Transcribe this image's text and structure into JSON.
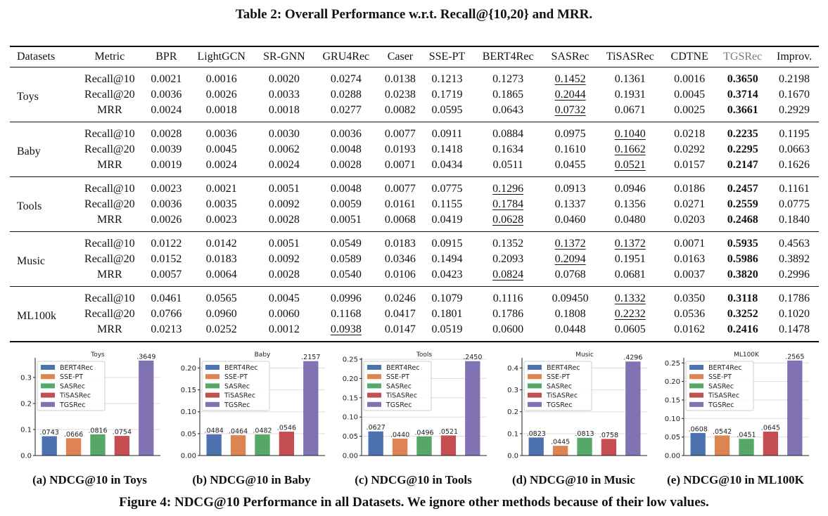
{
  "table_caption": "Table 2: Overall Performance w.r.t. Recall@{10,20} and MRR.",
  "columns": [
    "Datasets",
    "Metric",
    "BPR",
    "LightGCN",
    "SR-GNN",
    "GRU4Rec",
    "Caser",
    "SSE-PT",
    "BERT4Rec",
    "SASRec",
    "TiSASRec",
    "CDTNE",
    "TGSRec",
    "Improv."
  ],
  "groups": [
    {
      "dataset": "Toys",
      "rows": [
        {
          "metric": "Recall@10",
          "values": [
            "0.0021",
            "0.0016",
            "0.0020",
            "0.0274",
            "0.0138",
            "0.1213",
            "0.1273",
            "0.1452",
            "0.1361",
            "0.0016",
            "0.3650",
            "0.2198"
          ],
          "underline": 7
        },
        {
          "metric": "Recall@20",
          "values": [
            "0.0036",
            "0.0026",
            "0.0033",
            "0.0288",
            "0.0238",
            "0.1719",
            "0.1865",
            "0.2044",
            "0.1931",
            "0.0045",
            "0.3714",
            "0.1670"
          ],
          "underline": 7
        },
        {
          "metric": "MRR",
          "values": [
            "0.0024",
            "0.0018",
            "0.0018",
            "0.0277",
            "0.0082",
            "0.0595",
            "0.0643",
            "0.0732",
            "0.0671",
            "0.0025",
            "0.3661",
            "0.2929"
          ],
          "underline": 7
        }
      ]
    },
    {
      "dataset": "Baby",
      "rows": [
        {
          "metric": "Recall@10",
          "values": [
            "0.0028",
            "0.0036",
            "0.0030",
            "0.0036",
            "0.0077",
            "0.0911",
            "0.0884",
            "0.0975",
            "0.1040",
            "0.0218",
            "0.2235",
            "0.1195"
          ],
          "underline": 8
        },
        {
          "metric": "Recall@20",
          "values": [
            "0.0039",
            "0.0045",
            "0.0062",
            "0.0048",
            "0.0193",
            "0.1418",
            "0.1634",
            "0.1610",
            "0.1662",
            "0.0292",
            "0.2295",
            "0.0663"
          ],
          "underline": 8
        },
        {
          "metric": "MRR",
          "values": [
            "0.0019",
            "0.0024",
            "0.0024",
            "0.0028",
            "0.0071",
            "0.0434",
            "0.0511",
            "0.0455",
            "0.0521",
            "0.0157",
            "0.2147",
            "0.1626"
          ],
          "underline": 8
        }
      ]
    },
    {
      "dataset": "Tools",
      "rows": [
        {
          "metric": "Recall@10",
          "values": [
            "0.0023",
            "0.0021",
            "0.0051",
            "0.0048",
            "0.0077",
            "0.0775",
            "0.1296",
            "0.0913",
            "0.0946",
            "0.0186",
            "0.2457",
            "0.1161"
          ],
          "underline": 6
        },
        {
          "metric": "Recall@20",
          "values": [
            "0.0036",
            "0.0035",
            "0.0092",
            "0.0059",
            "0.0161",
            "0.1155",
            "0.1784",
            "0.1337",
            "0.1356",
            "0.0271",
            "0.2559",
            "0.0775"
          ],
          "underline": 6
        },
        {
          "metric": "MRR",
          "values": [
            "0.0026",
            "0.0023",
            "0.0028",
            "0.0051",
            "0.0068",
            "0.0419",
            "0.0628",
            "0.0460",
            "0.0480",
            "0.0203",
            "0.2468",
            "0.1840"
          ],
          "underline": 6
        }
      ]
    },
    {
      "dataset": "Music",
      "rows": [
        {
          "metric": "Recall@10",
          "values": [
            "0.0122",
            "0.0142",
            "0.0051",
            "0.0549",
            "0.0183",
            "0.0915",
            "0.1352",
            "0.1372",
            "0.1372",
            "0.0071",
            "0.5935",
            "0.4563"
          ],
          "underline": [
            7,
            8
          ]
        },
        {
          "metric": "Recall@20",
          "values": [
            "0.0152",
            "0.0183",
            "0.0092",
            "0.0589",
            "0.0346",
            "0.1494",
            "0.2093",
            "0.2094",
            "0.1951",
            "0.0163",
            "0.5986",
            "0.3892"
          ],
          "underline": 7
        },
        {
          "metric": "MRR",
          "values": [
            "0.0057",
            "0.0064",
            "0.0028",
            "0.0540",
            "0.0106",
            "0.0423",
            "0.0824",
            "0.0768",
            "0.0681",
            "0.0037",
            "0.3820",
            "0.2996"
          ],
          "underline": 6
        }
      ]
    },
    {
      "dataset": "ML100k",
      "rows": [
        {
          "metric": "Recall@10",
          "values": [
            "0.0461",
            "0.0565",
            "0.0045",
            "0.0996",
            "0.0246",
            "0.1079",
            "0.1116",
            "0.09450",
            "0.1332",
            "0.0350",
            "0.3118",
            "0.1786"
          ],
          "underline": 8
        },
        {
          "metric": "Recall@20",
          "values": [
            "0.0766",
            "0.0960",
            "0.0060",
            "0.1168",
            "0.0417",
            "0.1801",
            "0.1786",
            "0.1808",
            "0.2232",
            "0.0536",
            "0.3252",
            "0.1020"
          ],
          "underline": 8
        },
        {
          "metric": "MRR",
          "values": [
            "0.0213",
            "0.0252",
            "0.0012",
            "0.0938",
            "0.0147",
            "0.0519",
            "0.0600",
            "0.0448",
            "0.0605",
            "0.0162",
            "0.2416",
            "0.1478"
          ],
          "underline": 3
        }
      ]
    }
  ],
  "chart_data": [
    {
      "type": "bar",
      "title": "Toys",
      "categories": [
        "BERT4Rec",
        "SSE-PT",
        "SASRec",
        "TiSASRec",
        "TGSRec"
      ],
      "values": [
        0.0743,
        0.0666,
        0.0816,
        0.0754,
        0.3649
      ],
      "labels": [
        ".0743",
        ".0666",
        ".0816",
        ".0754",
        ".3649"
      ],
      "ylim": [
        0,
        0.37
      ],
      "yticks": [
        0.0,
        0.1,
        0.2,
        0.3
      ],
      "ytick_labels": [
        "0.0",
        "0.1",
        "0.2",
        "0.3"
      ],
      "grid": true,
      "legend": "top-left"
    },
    {
      "type": "bar",
      "title": "Baby",
      "categories": [
        "BERT4Rec",
        "SSE-PT",
        "SASRec",
        "TiSASRec",
        "TGSRec"
      ],
      "values": [
        0.0484,
        0.0464,
        0.0482,
        0.0546,
        0.2157
      ],
      "labels": [
        ".0484",
        ".0464",
        ".0482",
        ".0546",
        ".2157"
      ],
      "ylim": [
        0,
        0.22
      ],
      "yticks": [
        0.0,
        0.05,
        0.1,
        0.15,
        0.2
      ],
      "ytick_labels": [
        "0.00",
        "0.05",
        "0.10",
        "0.15",
        "0.20"
      ],
      "grid": true,
      "legend": "top-left"
    },
    {
      "type": "bar",
      "title": "Tools",
      "categories": [
        "BERT4Rec",
        "SSE-PT",
        "SASRec",
        "TiSASRec",
        "TGSRec"
      ],
      "values": [
        0.0627,
        0.044,
        0.0496,
        0.0521,
        0.245
      ],
      "labels": [
        ".0627",
        ".0440",
        ".0496",
        ".0521",
        ".2450"
      ],
      "ylim": [
        0,
        0.25
      ],
      "yticks": [
        0.0,
        0.05,
        0.1,
        0.15,
        0.2,
        0.25
      ],
      "ytick_labels": [
        "0.00",
        "0.05",
        "0.10",
        "0.15",
        "0.20",
        "0.25"
      ],
      "grid": true,
      "legend": "top-left"
    },
    {
      "type": "bar",
      "title": "Music",
      "categories": [
        "BERT4Rec",
        "SSE-PT",
        "SASRec",
        "TiSASRec",
        "TGSRec"
      ],
      "values": [
        0.0823,
        0.0445,
        0.0813,
        0.0758,
        0.4296
      ],
      "labels": [
        ".0823",
        ".0445",
        ".0813",
        ".0758",
        ".4296"
      ],
      "ylim": [
        0,
        0.44
      ],
      "yticks": [
        0.0,
        0.1,
        0.2,
        0.3,
        0.4
      ],
      "ytick_labels": [
        "0.0",
        "0.1",
        "0.2",
        "0.3",
        "0.4"
      ],
      "grid": true,
      "legend": "top-left"
    },
    {
      "type": "bar",
      "title": "ML100K",
      "categories": [
        "BERT4Rec",
        "SSE-PT",
        "SASRec",
        "TiSASRec",
        "TGSRec"
      ],
      "values": [
        0.0608,
        0.0542,
        0.0451,
        0.0645,
        0.2565
      ],
      "labels": [
        ".0608",
        ".0542",
        ".0451",
        ".0645",
        ".2565"
      ],
      "ylim": [
        0,
        0.26
      ],
      "yticks": [
        0.0,
        0.05,
        0.1,
        0.15,
        0.2,
        0.25
      ],
      "ytick_labels": [
        "0.00",
        "0.05",
        "0.10",
        "0.15",
        "0.20",
        "0.25"
      ],
      "grid": true,
      "legend": "top-left"
    }
  ],
  "series_colors": [
    "#4c72b0",
    "#dd8452",
    "#55a868",
    "#c44e52",
    "#8172b3"
  ],
  "subcaptions": [
    "(a) NDCG@10 in Toys",
    "(b) NDCG@10 in Baby",
    "(c) NDCG@10 in Tools",
    "(d) NDCG@10 in Music",
    "(e) NDCG@10 in ML100K"
  ],
  "figure_caption": "Figure 4: NDCG@10 Performance in all Datasets. We ignore other methods because of their low values."
}
